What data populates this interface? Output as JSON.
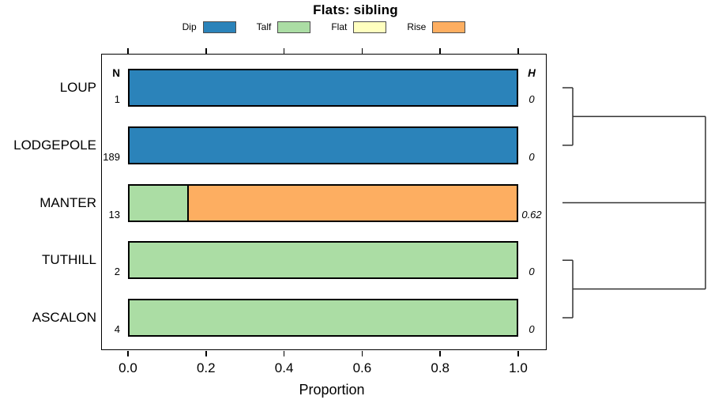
{
  "chart_data": {
    "type": "bar",
    "orientation": "horizontal",
    "stacked": true,
    "title": "Flats: sibling",
    "xlabel": "Proportion",
    "xlim": [
      0.0,
      1.0
    ],
    "x_tick_labels": [
      "0.0",
      "0.2",
      "0.4",
      "0.6",
      "0.8",
      "1.0"
    ],
    "grid": false,
    "legend_position": "top",
    "col_headers": {
      "n": "N",
      "h": "H"
    },
    "categories": [
      "LOUP",
      "LODGEPOLE",
      "MANTER",
      "TUTHILL",
      "ASCALON"
    ],
    "n_values": [
      "1",
      "189",
      "13",
      "2",
      "4"
    ],
    "h_values": [
      "0",
      "0",
      "0.62",
      "0",
      "0"
    ],
    "series": [
      {
        "name": "Dip",
        "color": "#2b83ba",
        "values": [
          1,
          1,
          0,
          0,
          0
        ]
      },
      {
        "name": "Talf",
        "color": "#abdda4",
        "values": [
          0,
          0,
          0.154,
          1,
          1
        ]
      },
      {
        "name": "Flat",
        "color": "#ffffbf",
        "values": [
          0,
          0,
          0,
          0,
          0
        ]
      },
      {
        "name": "Rise",
        "color": "#fdae61",
        "values": [
          0,
          0,
          0.846,
          0,
          0
        ]
      }
    ],
    "legend": [
      {
        "label": "Dip",
        "color": "#2b83ba"
      },
      {
        "label": "Talf",
        "color": "#abdda4"
      },
      {
        "label": "Flat",
        "color": "#ffffbf"
      },
      {
        "label": "Rise",
        "color": "#fdae61"
      }
    ],
    "dendrogram": {
      "type": "cluster-brackets",
      "brackets": [
        [
          "LOUP",
          "LODGEPOLE"
        ],
        [
          "TUTHILL",
          "ASCALON"
        ]
      ],
      "root_members": [
        [
          "LOUP",
          "LODGEPOLE"
        ],
        [
          "MANTER"
        ],
        [
          "TUTHILL",
          "ASCALON"
        ]
      ],
      "line_color": "#333333"
    }
  }
}
